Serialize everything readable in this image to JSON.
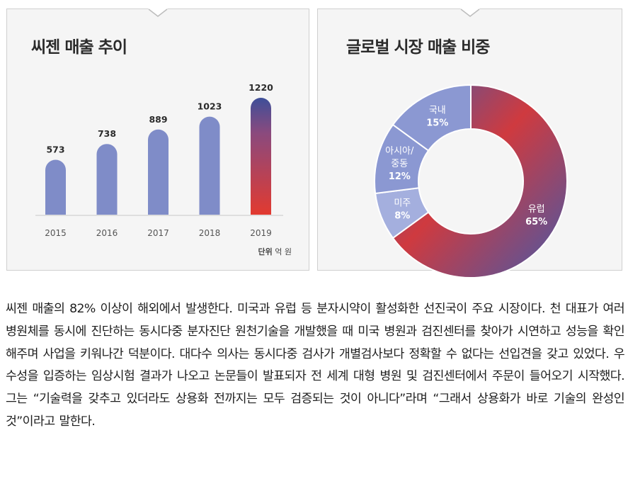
{
  "colors": {
    "bar": "#7f8cc8",
    "bar_highlight_top": "#3e4f99",
    "bar_highlight_bottom": "#e23a30",
    "donut_blue": "#4659a8",
    "donut_red": "#cf3a3f",
    "donut_light": "#8b98d2",
    "donut_lighter": "#a4afde"
  },
  "charts": {
    "bar": {
      "title": "씨젠 매출 추이",
      "unit_label": "단위",
      "unit_value": "억 원"
    },
    "pie": {
      "title": "글로벌 시장 매출 비중"
    }
  },
  "chart_data": [
    {
      "type": "bar",
      "title": "씨젠 매출 추이",
      "categories": [
        "2015",
        "2016",
        "2017",
        "2018",
        "2019"
      ],
      "values": [
        573,
        738,
        889,
        1023,
        1220
      ],
      "value_labels": [
        "573",
        "738",
        "889",
        "1023",
        "1220"
      ],
      "unit": "단위 억 원",
      "ylim": [
        0,
        1220
      ],
      "grid": false,
      "highlight_category": "2019"
    },
    {
      "type": "pie",
      "style": "donut",
      "title": "글로벌 시장 매출 비중",
      "slices": [
        {
          "label_lines": [
            "유럽"
          ],
          "value": 65,
          "value_label": "65%"
        },
        {
          "label_lines": [
            "미주"
          ],
          "value": 8,
          "value_label": "8%"
        },
        {
          "label_lines": [
            "아시아/",
            "중동"
          ],
          "value": 12,
          "value_label": "12%"
        },
        {
          "label_lines": [
            "국내"
          ],
          "value": 15,
          "value_label": "15%"
        }
      ]
    }
  ],
  "article": {
    "text": "씨젠 매출의 82% 이상이 해외에서 발생한다. 미국과 유럽 등 분자시약이 활성화한 선진국이 주요 시장이다. 천 대표가 여러 병원체를 동시에 진단하는 동시다중 분자진단 원천기술을 개발했을 때 미국 병원과 검진센터를 찾아가 시연하고 성능을 확인해주며 사업을 키워나간 덕분이다. 대다수 의사는 동시다중 검사가 개별검사보다 정확할 수 없다는 선입견을 갖고 있었다. 우수성을 입증하는 임상시험 결과가 나오고 논문들이 발표되자 전 세계 대형 병원 및 검진센터에서 주문이 들어오기 시작했다. 그는 “기술력을 갖추고 있더라도 상용화 전까지는 모두 검증되는 것이 아니다”라며 “그래서 상용화가 바로 기술의 완성인 것”이라고 말한다."
  }
}
